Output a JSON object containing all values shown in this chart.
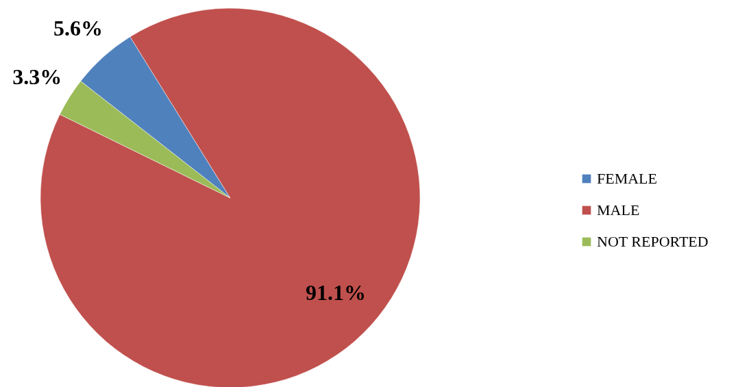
{
  "chart_data": {
    "type": "pie",
    "categories": [
      "FEMALE",
      "MALE",
      "NOT REPORTED"
    ],
    "values": [
      5.6,
      91.1,
      3.3
    ],
    "colors": [
      "#4f81bd",
      "#c0504d",
      "#9bbb59"
    ],
    "value_labels": [
      "5.6%",
      "91.1%",
      "3.3%"
    ],
    "legend": "right"
  }
}
